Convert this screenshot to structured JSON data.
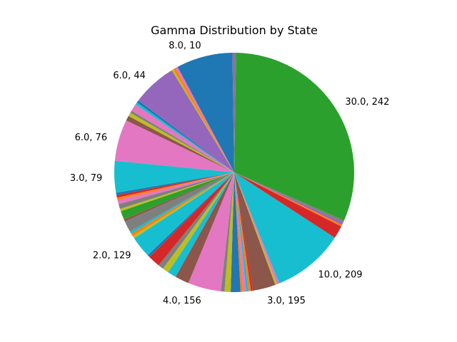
{
  "chart_data": {
    "type": "pie",
    "title": "Gamma Distribution by State",
    "start_angle_deg": 90,
    "direction": "clockwise",
    "slices": [
      {
        "value": 0.26,
        "color": "#7f7f7f"
      },
      {
        "value": 33.71,
        "color": "#2ca02c",
        "label": "30.0, 242"
      },
      {
        "value": 0.35,
        "color": "#7f7f7f"
      },
      {
        "value": 0.35,
        "color": "#9467bd"
      },
      {
        "value": 0.26,
        "color": "#ff7f0e"
      },
      {
        "value": 1.86,
        "color": "#d62728"
      },
      {
        "value": 10.43,
        "color": "#17becf",
        "label": "10.0, 209"
      },
      {
        "value": 0.35,
        "color": "#e377c2"
      },
      {
        "value": 0.26,
        "color": "#bcbd22"
      },
      {
        "value": 3.32,
        "color": "#8c564b",
        "label": "3.0, 195"
      },
      {
        "value": 0.26,
        "color": "#d62728"
      },
      {
        "value": 0.35,
        "color": "#ff7f0e"
      },
      {
        "value": 0.35,
        "color": "#17becf"
      },
      {
        "value": 0.44,
        "color": "#e377c2"
      },
      {
        "value": 0.35,
        "color": "#ff7f0e"
      },
      {
        "value": 1.42,
        "color": "#1f77b4"
      },
      {
        "value": 0.89,
        "color": "#bcbd22"
      },
      {
        "value": 0.53,
        "color": "#7f7f7f"
      },
      {
        "value": 4.79,
        "color": "#e377c2",
        "label": "4.0, 156"
      },
      {
        "value": 2.04,
        "color": "#8c564b"
      },
      {
        "value": 1.24,
        "color": "#17becf"
      },
      {
        "value": 0.89,
        "color": "#bcbd22"
      },
      {
        "value": 0.8,
        "color": "#7f7f7f"
      },
      {
        "value": 1.77,
        "color": "#d62728"
      },
      {
        "value": 0.35,
        "color": "#1f77b4"
      },
      {
        "value": 3.1,
        "color": "#17becf",
        "label": "2.0, 129"
      },
      {
        "value": 0.35,
        "color": "#bcbd22"
      },
      {
        "value": 0.44,
        "color": "#ff7f0e"
      },
      {
        "value": 0.35,
        "color": "#17becf"
      },
      {
        "value": 1.6,
        "color": "#7f7f7f"
      },
      {
        "value": 0.35,
        "color": "#8c564b"
      },
      {
        "value": 1.24,
        "color": "#2ca02c"
      },
      {
        "value": 0.35,
        "color": "#bcbd22"
      },
      {
        "value": 0.71,
        "color": "#7f7f7f"
      },
      {
        "value": 0.62,
        "color": "#e377c2"
      },
      {
        "value": 0.35,
        "color": "#ff7f0e"
      },
      {
        "value": 0.35,
        "color": "#d62728"
      },
      {
        "value": 0.35,
        "color": "#1f77b4"
      },
      {
        "value": 4.61,
        "color": "#17becf",
        "label": "3.0, 79"
      },
      {
        "value": 6.03,
        "color": "#e377c2",
        "label": "6.0, 76"
      },
      {
        "value": 0.71,
        "color": "#8c564b"
      },
      {
        "value": 0.53,
        "color": "#bcbd22"
      },
      {
        "value": 0.35,
        "color": "#7f7f7f"
      },
      {
        "value": 1.06,
        "color": "#e377c2"
      },
      {
        "value": 0.35,
        "color": "#17becf"
      },
      {
        "value": 0.35,
        "color": "#1f77b4"
      },
      {
        "value": 6.47,
        "color": "#9467bd",
        "label": "6.0, 44"
      },
      {
        "value": 0.26,
        "color": "#bcbd22"
      },
      {
        "value": 0.35,
        "color": "#ff7f0e"
      },
      {
        "value": 0.35,
        "color": "#e377c2"
      },
      {
        "value": 8.16,
        "color": "#1f77b4",
        "label": "8.0, 10"
      },
      {
        "value": 0.26,
        "color": "#9467bd"
      }
    ]
  }
}
